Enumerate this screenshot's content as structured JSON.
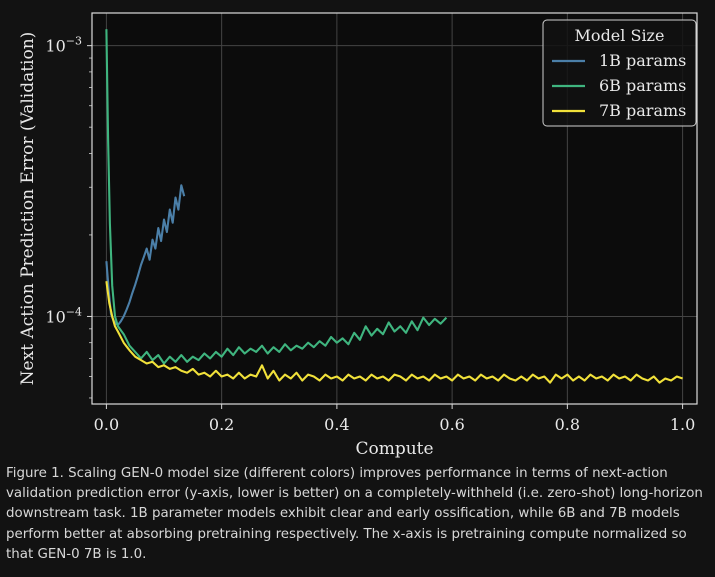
{
  "chart_data": {
    "type": "line",
    "title": "",
    "xlabel": "Compute",
    "ylabel": "Next Action Prediction Error (Validation)",
    "yscale": "log",
    "xlim": [
      -0.025,
      1.025
    ],
    "ylim": [
      4.75e-05,
      0.00132
    ],
    "xticks": [
      0.0,
      0.2,
      0.4,
      0.6,
      0.8,
      1.0
    ],
    "xtick_labels": [
      "0.0",
      "0.2",
      "0.4",
      "0.6",
      "0.8",
      "1.0"
    ],
    "yticks": [
      0.001,
      0.0001
    ],
    "ytick_labels": [
      {
        "base": "10",
        "exp": "−3"
      },
      {
        "base": "10",
        "exp": "−4"
      }
    ],
    "grid": true,
    "legend": {
      "title": "Model Size",
      "position": "top-right"
    },
    "series": [
      {
        "name": "1B params",
        "color": "#4b7fa8",
        "x": [
          0.0,
          0.004,
          0.008,
          0.012,
          0.016,
          0.02,
          0.025,
          0.03,
          0.035,
          0.04,
          0.045,
          0.05,
          0.055,
          0.06,
          0.065,
          0.07,
          0.075,
          0.08,
          0.085,
          0.09,
          0.095,
          0.1,
          0.105,
          0.11,
          0.115,
          0.12,
          0.125,
          0.13,
          0.135
        ],
        "values": [
          0.00016,
          0.000125,
          0.000102,
          9.7e-05,
          9.4e-05,
          9.3e-05,
          9.6e-05,
          0.0001,
          0.000106,
          0.000113,
          0.000122,
          0.000131,
          0.000142,
          0.000155,
          0.000166,
          0.000178,
          0.000162,
          0.000192,
          0.000178,
          0.000212,
          0.00019,
          0.000228,
          0.000205,
          0.000248,
          0.000222,
          0.000275,
          0.000248,
          0.000305,
          0.000278
        ]
      },
      {
        "name": "6B params",
        "color": "#3fb57f",
        "x": [
          0.0,
          0.003,
          0.006,
          0.01,
          0.015,
          0.02,
          0.03,
          0.04,
          0.05,
          0.06,
          0.07,
          0.08,
          0.09,
          0.1,
          0.11,
          0.12,
          0.13,
          0.14,
          0.15,
          0.16,
          0.17,
          0.18,
          0.19,
          0.2,
          0.21,
          0.22,
          0.23,
          0.24,
          0.25,
          0.26,
          0.27,
          0.28,
          0.29,
          0.3,
          0.31,
          0.32,
          0.33,
          0.34,
          0.35,
          0.36,
          0.37,
          0.38,
          0.39,
          0.4,
          0.41,
          0.42,
          0.43,
          0.44,
          0.45,
          0.46,
          0.47,
          0.48,
          0.49,
          0.5,
          0.51,
          0.52,
          0.53,
          0.54,
          0.55,
          0.56,
          0.57,
          0.58,
          0.59
        ],
        "values": [
          0.00115,
          0.00045,
          0.00022,
          0.00013,
          0.0001,
          9.2e-05,
          8.6e-05,
          7.8e-05,
          7.4e-05,
          7e-05,
          7.4e-05,
          6.9e-05,
          7.2e-05,
          6.7e-05,
          7.1e-05,
          6.8e-05,
          7.2e-05,
          6.8e-05,
          7.1e-05,
          6.9e-05,
          7.3e-05,
          7e-05,
          7.4e-05,
          7.1e-05,
          7.6e-05,
          7.2e-05,
          7.7e-05,
          7.3e-05,
          7.6e-05,
          7.4e-05,
          7.8e-05,
          7.3e-05,
          7.7e-05,
          7.4e-05,
          7.9e-05,
          7.5e-05,
          7.8e-05,
          7.6e-05,
          8e-05,
          7.7e-05,
          8.1e-05,
          7.8e-05,
          8.4e-05,
          8e-05,
          8.3e-05,
          7.9e-05,
          8.7e-05,
          8.2e-05,
          9.2e-05,
          8.5e-05,
          9e-05,
          8.6e-05,
          9.5e-05,
          8.8e-05,
          9.2e-05,
          8.7e-05,
          9.6e-05,
          8.9e-05,
          9.9e-05,
          9.3e-05,
          9.8e-05,
          9.4e-05,
          9.9e-05
        ]
      },
      {
        "name": "7B params",
        "color": "#f1e13a",
        "x": [
          0.0,
          0.005,
          0.01,
          0.015,
          0.02,
          0.03,
          0.04,
          0.05,
          0.06,
          0.07,
          0.08,
          0.09,
          0.1,
          0.11,
          0.12,
          0.13,
          0.14,
          0.15,
          0.16,
          0.17,
          0.18,
          0.19,
          0.2,
          0.21,
          0.22,
          0.23,
          0.24,
          0.25,
          0.26,
          0.27,
          0.28,
          0.29,
          0.3,
          0.31,
          0.32,
          0.33,
          0.34,
          0.35,
          0.36,
          0.37,
          0.38,
          0.39,
          0.4,
          0.41,
          0.42,
          0.43,
          0.44,
          0.45,
          0.46,
          0.47,
          0.48,
          0.49,
          0.5,
          0.51,
          0.52,
          0.53,
          0.54,
          0.55,
          0.56,
          0.57,
          0.58,
          0.59,
          0.6,
          0.61,
          0.62,
          0.63,
          0.64,
          0.65,
          0.66,
          0.67,
          0.68,
          0.69,
          0.7,
          0.71,
          0.72,
          0.73,
          0.74,
          0.75,
          0.76,
          0.77,
          0.78,
          0.79,
          0.8,
          0.81,
          0.82,
          0.83,
          0.84,
          0.85,
          0.86,
          0.87,
          0.88,
          0.89,
          0.9,
          0.91,
          0.92,
          0.93,
          0.94,
          0.95,
          0.96,
          0.97,
          0.98,
          0.99,
          1.0
        ],
        "values": [
          0.000135,
          0.000112,
          0.0001,
          9.2e-05,
          8.8e-05,
          8e-05,
          7.5e-05,
          7.1e-05,
          6.9e-05,
          6.7e-05,
          6.8e-05,
          6.5e-05,
          6.6e-05,
          6.4e-05,
          6.5e-05,
          6.3e-05,
          6.2e-05,
          6.4e-05,
          6.1e-05,
          6.2e-05,
          6e-05,
          6.3e-05,
          6e-05,
          6.1e-05,
          5.9e-05,
          6.2e-05,
          5.9e-05,
          6.1e-05,
          6e-05,
          6.6e-05,
          5.9e-05,
          6.3e-05,
          5.8e-05,
          6.1e-05,
          5.9e-05,
          6.2e-05,
          5.8e-05,
          6.1e-05,
          6e-05,
          5.8e-05,
          6.1e-05,
          5.9e-05,
          6e-05,
          5.8e-05,
          6.1e-05,
          5.9e-05,
          6e-05,
          5.8e-05,
          6.1e-05,
          5.9e-05,
          6e-05,
          5.8e-05,
          6.1e-05,
          6e-05,
          5.8e-05,
          6.1e-05,
          5.9e-05,
          6e-05,
          5.8e-05,
          6.1e-05,
          5.9e-05,
          6e-05,
          5.8e-05,
          6.1e-05,
          5.9e-05,
          6e-05,
          5.8e-05,
          6.1e-05,
          5.9e-05,
          6e-05,
          5.8e-05,
          6.1e-05,
          5.9e-05,
          5.8e-05,
          6e-05,
          5.8e-05,
          6.1e-05,
          5.9e-05,
          6e-05,
          5.7e-05,
          6.1e-05,
          5.9e-05,
          6.1e-05,
          5.8e-05,
          6e-05,
          5.8e-05,
          6.1e-05,
          5.9e-05,
          6e-05,
          5.8e-05,
          6.1e-05,
          5.9e-05,
          6e-05,
          5.8e-05,
          6.1e-05,
          5.9e-05,
          5.8e-05,
          6e-05,
          5.7e-05,
          5.9e-05,
          5.8e-05,
          6e-05,
          5.9e-05
        ]
      }
    ]
  },
  "caption": "Figure 1. Scaling GEN-0 model size (different colors) improves performance in terms of next-action validation prediction error (y-axis, lower is better) on a completely-withheld (i.e. zero-shot) long-horizon downstream task. 1B parameter models exhibit clear and early ossification, while 6B and 7B models perform better at absorbing pretraining respectively. The x-axis is pretraining compute normalized so that GEN-0 7B is 1.0."
}
